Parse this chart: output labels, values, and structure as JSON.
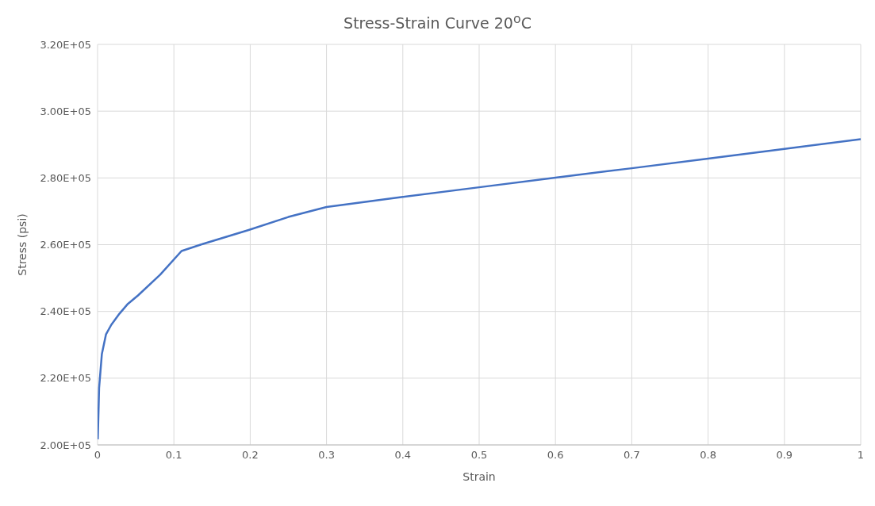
{
  "chart_data": {
    "type": "line",
    "title": "Stress-Strain Curve 20$^{o}$C",
    "xlabel": "Strain",
    "ylabel": "Stress (psi)",
    "x": [
      0.0003,
      0.002,
      0.0056,
      0.011,
      0.018,
      0.0286,
      0.039,
      0.053,
      0.082,
      0.11,
      0.135,
      0.198,
      0.25,
      0.3,
      0.4,
      0.5,
      0.6,
      0.7,
      0.8,
      0.9,
      1
    ],
    "series": [
      {
        "color": "#4472c4",
        "values": [
          201700,
          217100,
          227200,
          233100,
          236000,
          239300,
          242100,
          244800,
          251000,
          258100,
          260000,
          264400,
          268300,
          271300,
          274300,
          277200,
          280100,
          282900,
          285800,
          288700,
          291600
        ]
      }
    ],
    "xlim": [
      0,
      1
    ],
    "xticks": [
      0,
      0.1,
      0.2,
      0.3,
      0.4,
      0.5,
      0.6,
      0.7,
      0.8,
      0.9,
      1
    ],
    "ylim": [
      200000,
      320000
    ],
    "yticks": [
      {
        "value": 200000,
        "label": "2.00E+05"
      },
      {
        "value": 220000,
        "label": "2.20E+05"
      },
      {
        "value": 240000,
        "label": "2.40E+05"
      },
      {
        "value": 260000,
        "label": "2.60E+05"
      },
      {
        "value": 280000,
        "label": "2.80E+05"
      },
      {
        "value": 300000,
        "label": "3.00E+05"
      },
      {
        "value": 320000,
        "label": "3.20E+05"
      }
    ],
    "grid": true,
    "marker": "none",
    "line_style": "solid"
  }
}
